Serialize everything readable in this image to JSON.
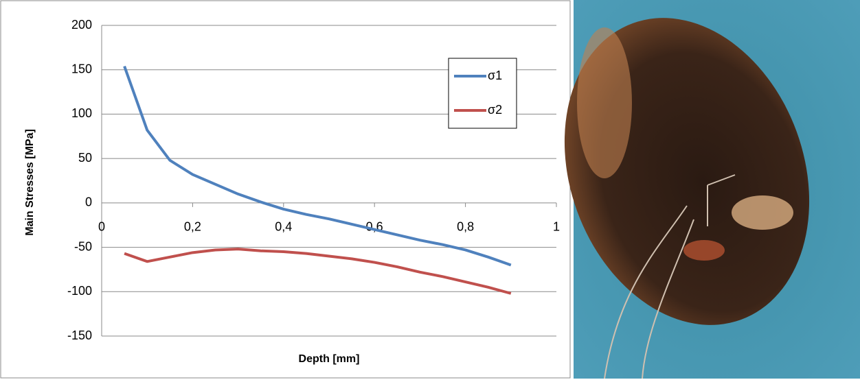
{
  "chart_data": {
    "type": "line",
    "x_label": "Depth [mm]",
    "y_label": "Main Stresses [MPa]",
    "x": [
      0.05,
      0.1,
      0.15,
      0.2,
      0.25,
      0.3,
      0.35,
      0.4,
      0.45,
      0.5,
      0.55,
      0.6,
      0.65,
      0.7,
      0.75,
      0.8,
      0.85,
      0.9
    ],
    "series": [
      {
        "name": "σ1",
        "color": "#4f81bd",
        "values": [
          154,
          82,
          48,
          32,
          21,
          10,
          1,
          -7,
          -13,
          -18,
          -24,
          -30,
          -36,
          -42,
          -47,
          -53,
          -61,
          -70
        ]
      },
      {
        "name": "σ2",
        "color": "#c0504d",
        "values": [
          -57,
          -66,
          -61,
          -56,
          -53,
          -52,
          -54,
          -55,
          -57,
          -60,
          -63,
          -67,
          -72,
          -78,
          -83,
          -89,
          -95,
          -102
        ]
      }
    ],
    "xlim": [
      0,
      1
    ],
    "xticks": [
      0,
      {
        "value": 0.2,
        "label": "0,2"
      },
      {
        "value": 0.4,
        "label": "0,4"
      },
      {
        "value": 0.6,
        "label": "0,6"
      },
      {
        "value": 0.8,
        "label": "0,8"
      },
      1
    ],
    "ylim": [
      -150,
      200
    ],
    "yticks": [
      -150,
      -100,
      -50,
      0,
      50,
      100,
      150,
      200
    ],
    "grid": true,
    "legend": "upper-right"
  }
}
